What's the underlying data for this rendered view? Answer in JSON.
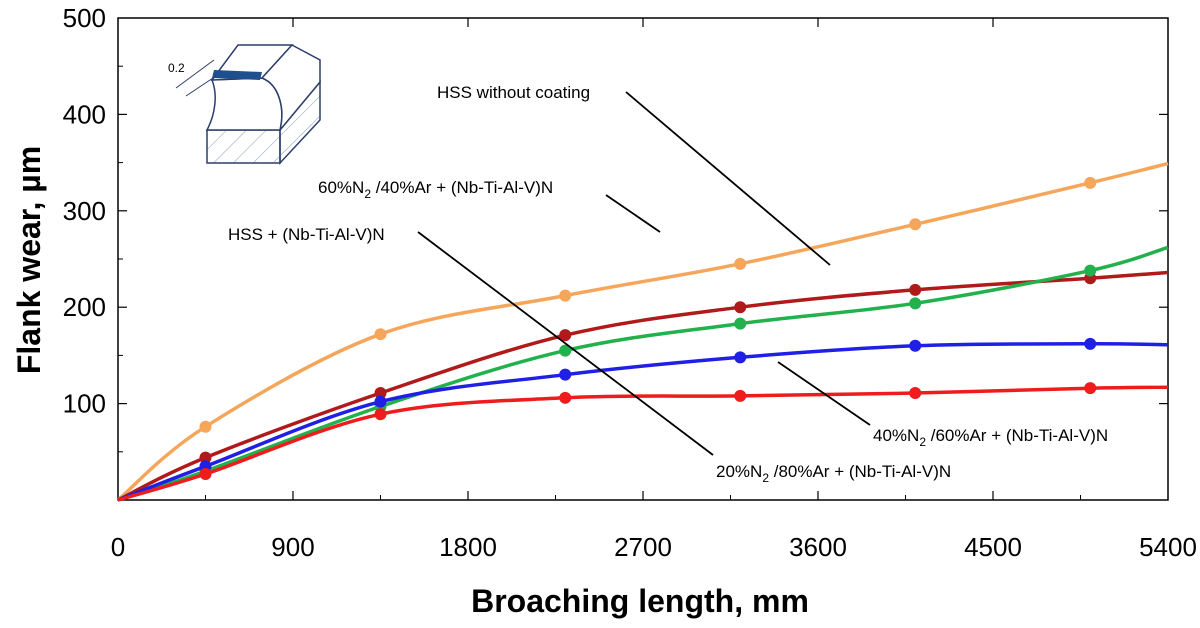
{
  "chart_data": {
    "type": "line",
    "title": "",
    "xlabel": "Broaching length, mm",
    "ylabel": "Flank wear, µm",
    "xlim": [
      0,
      5400
    ],
    "ylim": [
      0,
      500
    ],
    "x_ticks": [
      0,
      900,
      1800,
      2700,
      3600,
      4500,
      5400
    ],
    "y_ticks": [
      100,
      200,
      300,
      400,
      500
    ],
    "grid": false,
    "legend": "none",
    "x": [
      450,
      1350,
      2300,
      3200,
      4100,
      5000
    ],
    "series": [
      {
        "color": "#f5a65b",
        "values": [
          76,
          172,
          212,
          245,
          286,
          329
        ],
        "curve_end": 349
      },
      {
        "color": "#b01a1a",
        "values": [
          44,
          111,
          171,
          200,
          218,
          230
        ],
        "curve_end": 236
      },
      {
        "color": "#22b14c",
        "values": [
          30,
          97,
          155,
          183,
          204,
          238
        ],
        "curve_end": 262
      },
      {
        "color": "#1f1fe6",
        "values": [
          35,
          102,
          130,
          148,
          160,
          162
        ],
        "curve_end": 161
      },
      {
        "color": "#ee1c1c",
        "values": [
          27,
          89,
          106,
          108,
          111,
          116
        ],
        "curve_end": 117
      }
    ],
    "annotations": [
      {
        "id": "hss",
        "text": "HSS without coating"
      },
      {
        "id": "n60",
        "pre": "60%N",
        "sub": "2",
        "post": " /40%Ar + (Nb-Ti-Al-V)N"
      },
      {
        "id": "hssc",
        "text": "HSS + (Nb-Ti-Al-V)N"
      },
      {
        "id": "n40",
        "pre": "40%N",
        "sub": "2",
        "post": " /60%Ar + (Nb-Ti-Al-V)N"
      },
      {
        "id": "n20",
        "pre": "20%N",
        "sub": "2",
        "post": " /80%Ar + (Nb-Ti-Al-V)N"
      }
    ],
    "inset": {
      "label": "0.2"
    }
  }
}
